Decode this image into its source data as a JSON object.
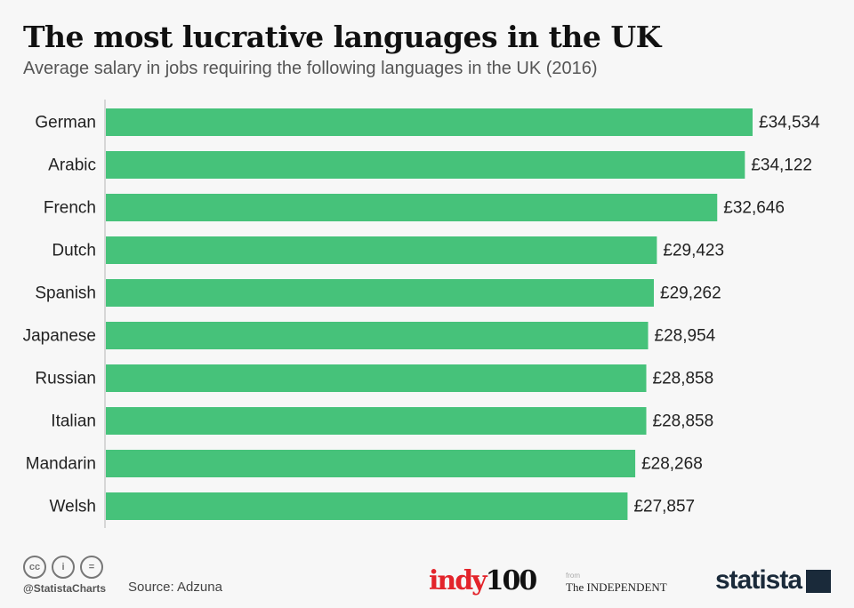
{
  "chart_data": {
    "type": "bar",
    "orientation": "horizontal",
    "title": "The most lucrative languages in the UK",
    "subtitle": "Average salary in jobs requiring the following languages in the UK (2016)",
    "categories": [
      "German",
      "Arabic",
      "French",
      "Dutch",
      "Spanish",
      "Japanese",
      "Russian",
      "Italian",
      "Mandarin",
      "Welsh"
    ],
    "values": [
      34534,
      34122,
      32646,
      29423,
      29262,
      28954,
      28858,
      28858,
      28268,
      27857
    ],
    "value_labels": [
      "£34,534",
      "£34,122",
      "£32,646",
      "£29,423",
      "£29,262",
      "£28,954",
      "£28,858",
      "£28,858",
      "£28,268",
      "£27,857"
    ],
    "xlim": [
      0,
      34534
    ],
    "grid": false,
    "bar_color": "#46c27a"
  },
  "footer": {
    "handle": "@StatistaCharts",
    "source": "Source: Adzuna",
    "cc_icons": [
      "cc-icon",
      "attribution-icon",
      "no-derivatives-icon"
    ],
    "cc_text": [
      "cc",
      "i",
      "="
    ],
    "indy_a": "indy",
    "indy_b": "100",
    "from": "from",
    "independent": "The INDEPENDENT",
    "statista": "statista"
  }
}
